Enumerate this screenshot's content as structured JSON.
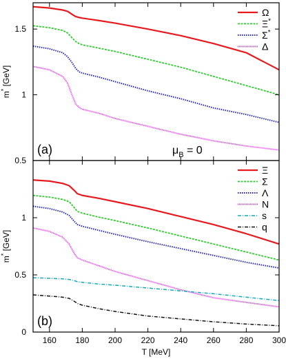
{
  "chart_data": [
    {
      "type": "line",
      "panel_label": "(a)",
      "annotation": {
        "symbol": "μ",
        "subscript": "B",
        "rest": " = 0"
      },
      "xlim": [
        150,
        300
      ],
      "ylim": [
        0.5,
        1.7
      ],
      "yticks": [
        0.5,
        1,
        1.5
      ],
      "ytick_labels": [
        "0.5",
        "1",
        "1.5"
      ],
      "xticks": [
        160,
        180,
        200,
        220,
        240,
        260,
        280,
        300
      ],
      "xtick_labels": [],
      "ylabel": {
        "base": "m",
        "sup": "*",
        "rest": " [GeV]"
      },
      "legend_position": "top-right",
      "series": [
        {
          "name": "Ω",
          "sup": "",
          "color": "#e8191d",
          "dash": "solid",
          "width": 2.2,
          "x": [
            150,
            160,
            168,
            171,
            174,
            176,
            178,
            180,
            190,
            200,
            220,
            240,
            260,
            280,
            300
          ],
          "y": [
            1.67,
            1.66,
            1.645,
            1.635,
            1.61,
            1.595,
            1.588,
            1.583,
            1.565,
            1.545,
            1.5,
            1.45,
            1.39,
            1.32,
            1.19
          ]
        },
        {
          "name": "Ξ",
          "sup": "*",
          "color": "#2fcc2f",
          "dash": "3,1.5",
          "width": 1.8,
          "x": [
            150,
            160,
            168,
            171,
            174,
            176,
            178,
            180,
            190,
            200,
            220,
            240,
            260,
            280,
            300
          ],
          "y": [
            1.525,
            1.51,
            1.49,
            1.47,
            1.43,
            1.405,
            1.39,
            1.38,
            1.355,
            1.33,
            1.27,
            1.21,
            1.14,
            1.07,
            1.0
          ]
        },
        {
          "name": "Σ",
          "sup": "*",
          "color": "#2222c8",
          "dash": "1.5,1.5",
          "width": 2.0,
          "x": [
            150,
            160,
            168,
            171,
            174,
            176,
            178,
            180,
            190,
            200,
            220,
            240,
            260,
            280,
            300
          ],
          "y": [
            1.37,
            1.35,
            1.32,
            1.29,
            1.24,
            1.2,
            1.175,
            1.165,
            1.135,
            1.1,
            1.03,
            0.97,
            0.9,
            0.85,
            0.79
          ]
        },
        {
          "name": "Δ",
          "sup": "",
          "color": "#ee33ee",
          "dash": "1,1",
          "width": 2.0,
          "x": [
            150,
            160,
            168,
            171,
            174,
            176,
            178,
            180,
            190,
            200,
            220,
            240,
            260,
            280,
            300
          ],
          "y": [
            1.215,
            1.19,
            1.14,
            1.09,
            0.99,
            0.93,
            0.905,
            0.89,
            0.86,
            0.82,
            0.76,
            0.7,
            0.65,
            0.61,
            0.58
          ]
        }
      ]
    },
    {
      "type": "line",
      "panel_label": "(b)",
      "xlim": [
        150,
        300
      ],
      "ylim": [
        0,
        1.5
      ],
      "yticks": [
        0,
        0.5,
        1
      ],
      "ytick_labels": [
        "0",
        "0.5",
        "1"
      ],
      "xticks": [
        160,
        180,
        200,
        220,
        240,
        260,
        280,
        300
      ],
      "xtick_labels": [
        "160",
        "180",
        "200",
        "220",
        "240",
        "260",
        "280",
        "300"
      ],
      "xlabel": "T [MeV]",
      "ylabel": {
        "base": "m",
        "sup": "*",
        "rest": " [GeV]"
      },
      "legend_position": "top-right",
      "series": [
        {
          "name": "Ξ",
          "sup": "",
          "color": "#e8191d",
          "dash": "solid",
          "width": 2.2,
          "x": [
            150,
            160,
            168,
            172,
            175,
            177,
            180,
            190,
            200,
            220,
            240,
            260,
            280,
            300
          ],
          "y": [
            1.33,
            1.32,
            1.3,
            1.28,
            1.24,
            1.21,
            1.195,
            1.17,
            1.14,
            1.08,
            1.01,
            0.94,
            0.86,
            0.77
          ]
        },
        {
          "name": "Σ",
          "sup": "",
          "color": "#2fcc2f",
          "dash": "3,1.5",
          "width": 1.8,
          "x": [
            150,
            160,
            168,
            172,
            175,
            177,
            180,
            190,
            200,
            220,
            240,
            260,
            280,
            300
          ],
          "y": [
            1.195,
            1.18,
            1.16,
            1.14,
            1.09,
            1.055,
            1.04,
            1.005,
            0.975,
            0.91,
            0.84,
            0.77,
            0.7,
            0.63
          ]
        },
        {
          "name": "Λ",
          "sup": "",
          "color": "#2222c8",
          "dash": "1.5,1.5",
          "width": 2.0,
          "x": [
            150,
            160,
            168,
            172,
            175,
            177,
            180,
            190,
            200,
            220,
            240,
            260,
            280,
            300
          ],
          "y": [
            1.1,
            1.08,
            1.05,
            1.02,
            0.97,
            0.94,
            0.925,
            0.89,
            0.855,
            0.79,
            0.73,
            0.67,
            0.61,
            0.56
          ]
        },
        {
          "name": "N",
          "sup": "",
          "color": "#ee33ee",
          "dash": "1,1",
          "width": 2.0,
          "x": [
            150,
            160,
            168,
            172,
            175,
            177,
            180,
            190,
            200,
            220,
            240,
            260,
            280,
            300
          ],
          "y": [
            0.91,
            0.88,
            0.83,
            0.77,
            0.69,
            0.65,
            0.63,
            0.58,
            0.53,
            0.45,
            0.37,
            0.3,
            0.26,
            0.22
          ]
        },
        {
          "name": "s",
          "sup": "",
          "color": "#11aabb",
          "dash": "5,2,1,2",
          "width": 1.5,
          "x": [
            150,
            160,
            168,
            172,
            175,
            177,
            180,
            190,
            200,
            220,
            240,
            260,
            280,
            300
          ],
          "y": [
            0.475,
            0.47,
            0.465,
            0.46,
            0.45,
            0.44,
            0.435,
            0.42,
            0.41,
            0.385,
            0.36,
            0.335,
            0.305,
            0.275
          ]
        },
        {
          "name": "q",
          "sup": "",
          "color": "#111111",
          "dash": "5,2,1,2",
          "width": 1.5,
          "x": [
            150,
            160,
            168,
            172,
            175,
            177,
            180,
            190,
            200,
            220,
            240,
            260,
            280,
            300
          ],
          "y": [
            0.325,
            0.315,
            0.305,
            0.295,
            0.27,
            0.25,
            0.235,
            0.205,
            0.18,
            0.14,
            0.115,
            0.09,
            0.07,
            0.055
          ]
        }
      ]
    }
  ]
}
